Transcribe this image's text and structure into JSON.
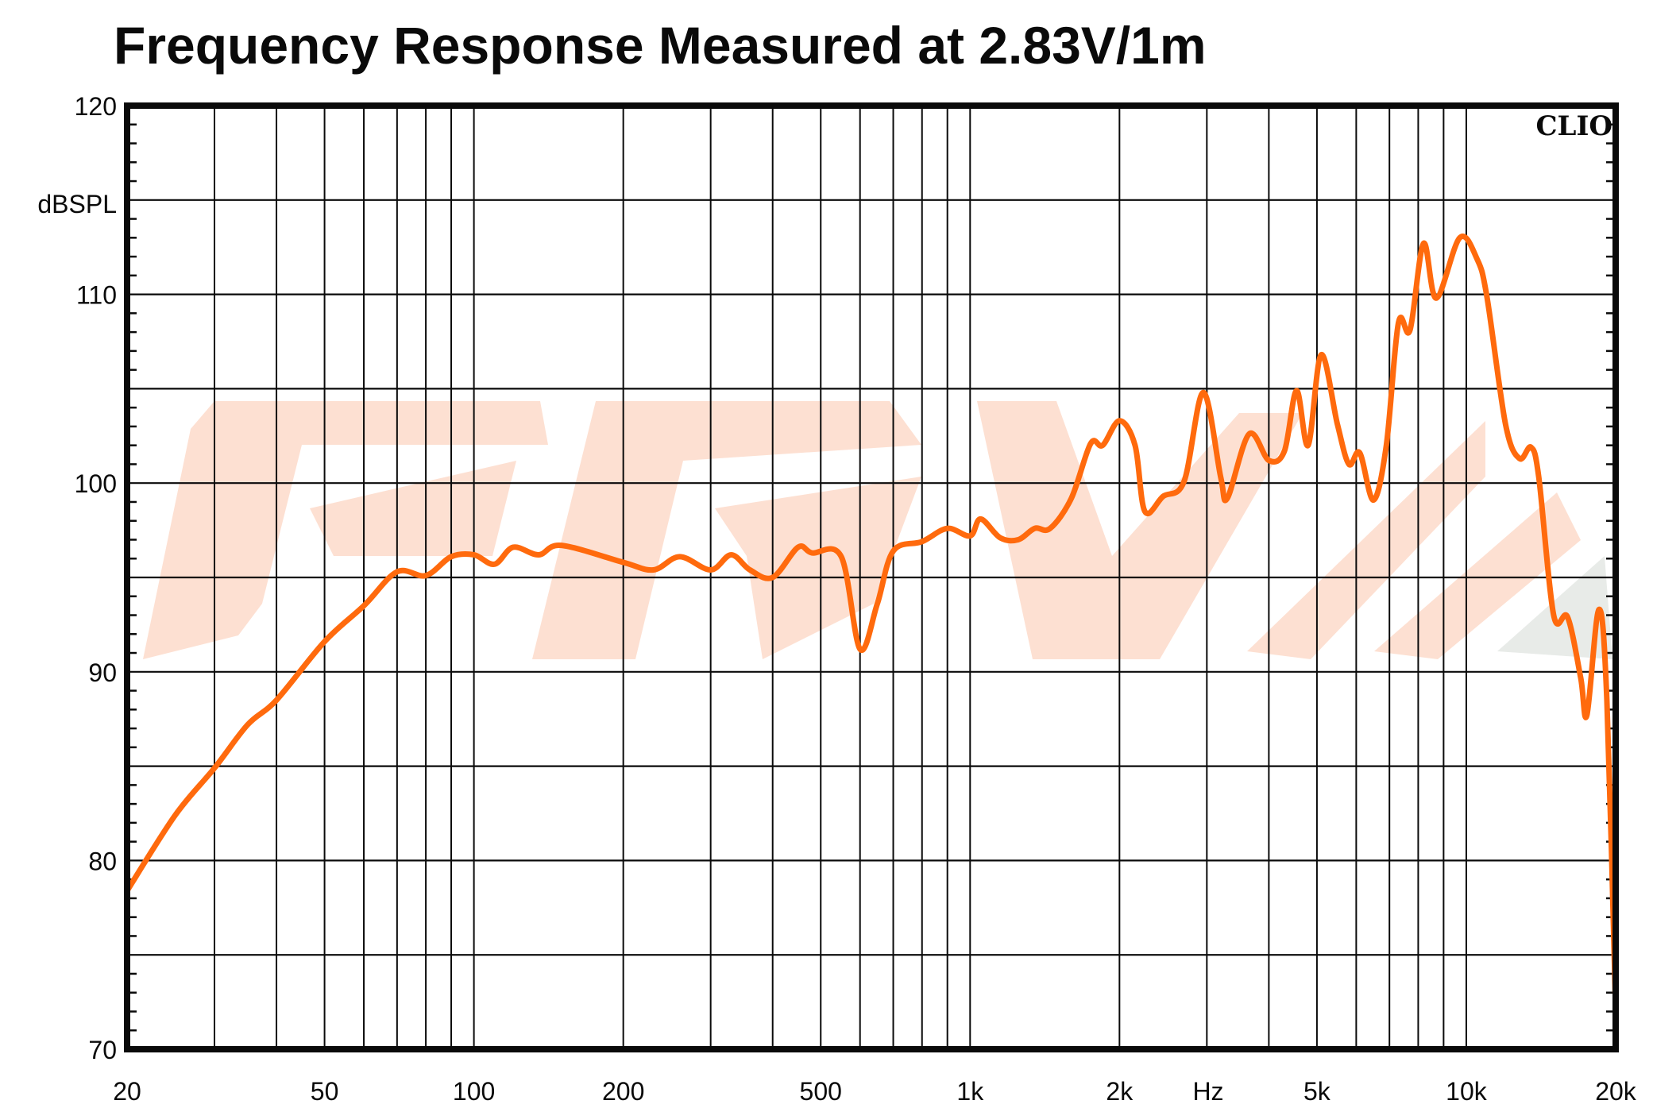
{
  "chart_data": {
    "type": "line",
    "title": "Frequency Response Measured at 2.83V/1m",
    "xlabel": "Hz",
    "ylabel": "dBSPL",
    "xscale": "log",
    "xlim": [
      20,
      20000
    ],
    "ylim": [
      70,
      120
    ],
    "grid": true,
    "brand_label": "CLIO",
    "x_ticks": [
      {
        "value": 20,
        "label": "20"
      },
      {
        "value": 50,
        "label": "50"
      },
      {
        "value": 100,
        "label": "100"
      },
      {
        "value": 200,
        "label": "200"
      },
      {
        "value": 500,
        "label": "500"
      },
      {
        "value": 1000,
        "label": "1k"
      },
      {
        "value": 2000,
        "label": "2k"
      },
      {
        "value": 5000,
        "label": "5k"
      },
      {
        "value": 10000,
        "label": "10k"
      },
      {
        "value": 20000,
        "label": "20k"
      }
    ],
    "y_ticks": [
      {
        "value": 120,
        "label": "120"
      },
      {
        "value": 110,
        "label": "110"
      },
      {
        "value": 100,
        "label": "100"
      },
      {
        "value": 90,
        "label": "90"
      },
      {
        "value": 80,
        "label": "80"
      },
      {
        "value": 70,
        "label": "70"
      }
    ],
    "series": [
      {
        "name": "Frequency response",
        "color": "#ff6a0d",
        "x": [
          20,
          25,
          30,
          35,
          40,
          50,
          60,
          70,
          80,
          90,
          100,
          110,
          120,
          135,
          150,
          200,
          230,
          260,
          300,
          330,
          360,
          400,
          450,
          480,
          550,
          600,
          650,
          700,
          800,
          900,
          1000,
          1050,
          1150,
          1250,
          1350,
          1450,
          1600,
          1750,
          1850,
          2000,
          2150,
          2250,
          2450,
          2700,
          2950,
          3200,
          3300,
          3650,
          4000,
          4300,
          4550,
          4800,
          5100,
          5500,
          5800,
          6100,
          6500,
          6900,
          7300,
          7700,
          8200,
          8700,
          9700,
          10500,
          11000,
          12000,
          12800,
          13500,
          14000,
          15000,
          16000,
          17000,
          17500,
          18500,
          19200,
          20000
        ],
        "y": [
          78.4,
          82.4,
          84.9,
          87.2,
          88.5,
          91.6,
          93.5,
          95.3,
          95.1,
          96.1,
          96.2,
          95.7,
          96.6,
          96.2,
          96.7,
          95.8,
          95.4,
          96.1,
          95.4,
          96.2,
          95.4,
          95.0,
          96.6,
          96.3,
          96.1,
          91.2,
          93.6,
          96.4,
          96.9,
          97.6,
          97.2,
          98.1,
          97.1,
          97.0,
          97.6,
          97.6,
          99.2,
          102.1,
          102.0,
          103.3,
          102.0,
          98.5,
          99.3,
          100.1,
          104.8,
          100.3,
          99.2,
          102.6,
          101.2,
          101.7,
          104.9,
          102.0,
          106.8,
          103.1,
          101.0,
          101.6,
          99.1,
          102.0,
          108.5,
          108.1,
          112.7,
          109.8,
          113.0,
          111.9,
          109.9,
          103.1,
          101.3,
          101.9,
          100.3,
          93.0,
          92.9,
          89.7,
          87.7,
          93.3,
          88.5,
          72.0
        ]
      }
    ]
  },
  "colors": {
    "axis": "#0a0a0a",
    "curve": "#ff6a0d",
    "watermark": "#fde0d2",
    "watermark_grey": "#e8ebe8"
  }
}
